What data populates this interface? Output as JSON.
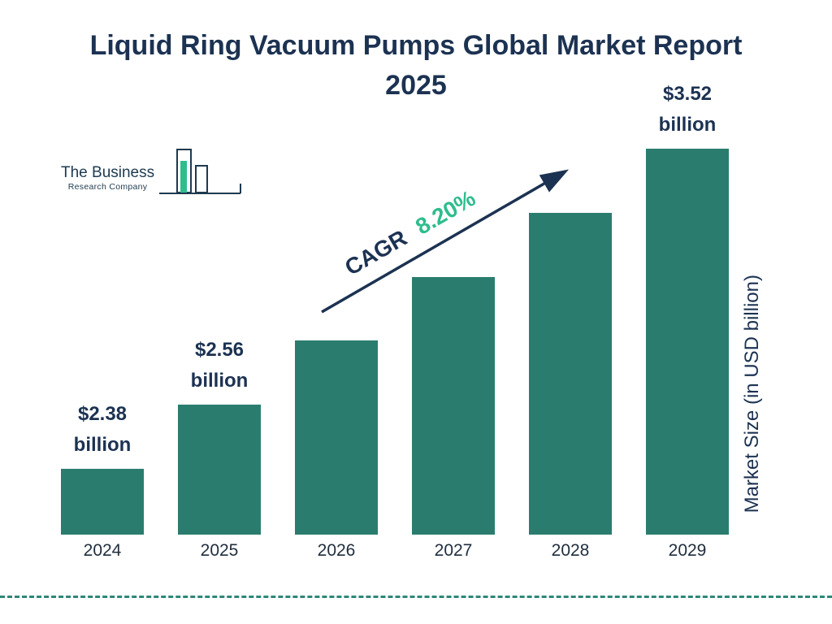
{
  "title": "Liquid Ring Vacuum Pumps Global Market Report 2025",
  "logo": {
    "line1": "The Business",
    "line2": "Research Company"
  },
  "annotation": {
    "cagr_label": "CAGR",
    "cagr_value": "8.20%"
  },
  "right_axis_label": "Market Size (in USD billion)",
  "colors": {
    "bar": "#2a7d6e",
    "navy": "#1c3252",
    "green": "#2ebd8d",
    "dashed_line": "#2e8777"
  },
  "chart_data": {
    "type": "bar",
    "title": "Liquid Ring Vacuum Pumps Global Market Report 2025",
    "categories": [
      "2024",
      "2025",
      "2026",
      "2027",
      "2028",
      "2029"
    ],
    "values": [
      2.38,
      2.56,
      2.77,
      3.0,
      3.25,
      3.52
    ],
    "unit": "USD billion",
    "ylabel": "Market Size (in USD billion)",
    "bar_labels": [
      {
        "value": "$2.38",
        "unit": "billion"
      },
      {
        "value": "$2.56",
        "unit": "billion"
      },
      null,
      null,
      null,
      {
        "value": "$3.52",
        "unit": "billion"
      }
    ],
    "cagr": "8.20%",
    "legend": "none",
    "grid": false
  }
}
